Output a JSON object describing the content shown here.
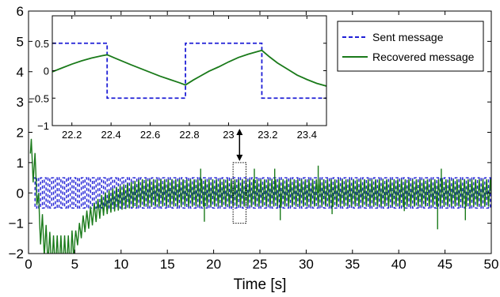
{
  "chart_data": [
    {
      "type": "line",
      "title": "",
      "xlabel": "Time [s]",
      "ylabel": "",
      "xlim": [
        0,
        50
      ],
      "ylim": [
        -2,
        6
      ],
      "x_ticks": [
        "0",
        "5",
        "10",
        "15",
        "20",
        "25",
        "30",
        "35",
        "40",
        "45",
        "50"
      ],
      "y_ticks": [
        "−2",
        "−1",
        "0",
        "1",
        "2",
        "3",
        "4",
        "5",
        "6"
      ],
      "grid": false,
      "legend_position": "top-right",
      "series": [
        {
          "name": "Sent message",
          "style": "dashed",
          "color": "#1f1fd6",
          "description_values": {
            "high": 0.5,
            "low": -0.5,
            "switch_period_s": 0.4,
            "t_start": 0.5,
            "t_end": 50
          }
        },
        {
          "name": "Recovered message",
          "style": "solid",
          "color": "#1a7a1a",
          "envelope_points": [
            {
              "x": 0.2,
              "y": 1.3
            },
            {
              "x": 0.8,
              "y": 0.6
            },
            {
              "x": 1.2,
              "y": -1.0
            },
            {
              "x": 1.8,
              "y": -1.6
            },
            {
              "x": 2.5,
              "y": -2.0
            },
            {
              "x": 4.5,
              "y": -2.0
            },
            {
              "x": 5.0,
              "y": -1.6
            },
            {
              "x": 6.0,
              "y": -1.0
            },
            {
              "x": 7.0,
              "y": -0.7
            },
            {
              "x": 8.0,
              "y": -0.4
            },
            {
              "x": 9.0,
              "y": -0.25
            },
            {
              "x": 10.0,
              "y": -0.15
            },
            {
              "x": 12.0,
              "y": 0.0
            },
            {
              "x": 20.0,
              "y": 0.0
            },
            {
              "x": 50.0,
              "y": 0.0
            }
          ],
          "oscillation_amplitude_late": 0.45,
          "spikes": [
            {
              "x": 18.6,
              "y": 0.8
            },
            {
              "x": 19.0,
              "y": -0.95
            },
            {
              "x": 24.4,
              "y": 0.8
            },
            {
              "x": 26.6,
              "y": 0.8
            },
            {
              "x": 27.2,
              "y": -0.9
            },
            {
              "x": 31.3,
              "y": 0.9
            },
            {
              "x": 32.8,
              "y": -0.7
            },
            {
              "x": 40.6,
              "y": -0.6
            },
            {
              "x": 44.2,
              "y": -1.2
            },
            {
              "x": 44.6,
              "y": 0.8
            },
            {
              "x": 47.2,
              "y": -0.9
            }
          ]
        }
      ],
      "annotations": [
        {
          "type": "zoom-box",
          "x_range": [
            22.1,
            23.5
          ],
          "y_range": [
            -1,
            1
          ]
        },
        {
          "type": "double-arrow",
          "from": "zoom-box",
          "to": "inset"
        }
      ]
    },
    {
      "type": "line",
      "title": "",
      "xlabel": "",
      "ylabel": "",
      "xlim": [
        22.1,
        23.5
      ],
      "ylim": [
        -1,
        1
      ],
      "x_ticks": [
        "22.2",
        "22.4",
        "22.6",
        "22.8",
        "23",
        "23.2",
        "23.4"
      ],
      "y_ticks": [
        "−1",
        "−0.5",
        "0",
        "0.5"
      ],
      "series": [
        {
          "name": "Sent message",
          "style": "dashed",
          "color": "#1f1fd6",
          "x": [
            22.1,
            22.38,
            22.38,
            22.78,
            22.78,
            23.17,
            23.17,
            23.5
          ],
          "y": [
            0.5,
            0.5,
            -0.5,
            -0.5,
            0.5,
            0.5,
            -0.5,
            -0.5
          ]
        },
        {
          "name": "Recovered message",
          "style": "solid",
          "color": "#1a7a1a",
          "x": [
            22.1,
            22.15,
            22.2,
            22.25,
            22.3,
            22.35,
            22.38,
            22.42,
            22.46,
            22.5,
            22.55,
            22.6,
            22.65,
            22.7,
            22.75,
            22.78,
            22.82,
            22.86,
            22.9,
            22.95,
            23.0,
            23.05,
            23.1,
            23.15,
            23.17,
            23.21,
            23.25,
            23.3,
            23.35,
            23.4,
            23.45,
            23.5
          ],
          "y": [
            -0.02,
            0.05,
            0.12,
            0.18,
            0.23,
            0.27,
            0.29,
            0.23,
            0.17,
            0.11,
            0.04,
            -0.03,
            -0.1,
            -0.16,
            -0.22,
            -0.26,
            -0.17,
            -0.09,
            -0.01,
            0.07,
            0.16,
            0.24,
            0.3,
            0.35,
            0.37,
            0.25,
            0.14,
            0.03,
            -0.08,
            -0.16,
            -0.23,
            -0.28
          ]
        }
      ]
    }
  ],
  "legend": {
    "items": [
      {
        "label": "Sent message",
        "color": "#1f1fd6",
        "style": "dashed"
      },
      {
        "label": "Recovered message",
        "color": "#1a7a1a",
        "style": "solid"
      }
    ]
  }
}
